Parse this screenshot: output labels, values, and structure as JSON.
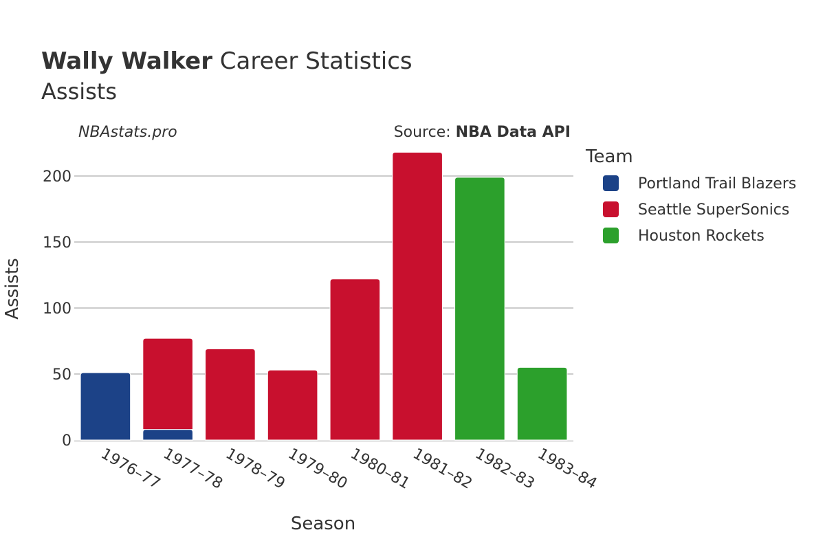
{
  "header": {
    "player": "Wally Walker",
    "title_rest": "Career Statistics",
    "subtitle": "Assists"
  },
  "watermark": "NBAstats.pro",
  "source": {
    "prefix": "Source: ",
    "name": "NBA Data API"
  },
  "legend": {
    "title": "Team"
  },
  "chart_data": {
    "type": "bar",
    "stacked": true,
    "categories": [
      "1976–77",
      "1977–78",
      "1978–79",
      "1979–80",
      "1980–81",
      "1981–82",
      "1982–83",
      "1983–84"
    ],
    "series": [
      {
        "name": "Portland Trail Blazers",
        "color": "#1c4287",
        "values": [
          51,
          8,
          0,
          0,
          0,
          0,
          0,
          0
        ]
      },
      {
        "name": "Seattle SuperSonics",
        "color": "#c8102e",
        "values": [
          0,
          69,
          69,
          53,
          122,
          218,
          0,
          0
        ]
      },
      {
        "name": "Houston Rockets",
        "color": "#2ca02c",
        "values": [
          0,
          0,
          0,
          0,
          0,
          0,
          199,
          55
        ]
      }
    ],
    "xlabel": "Season",
    "ylabel": "Assists",
    "ylim": [
      0,
      225
    ],
    "yticks": [
      0,
      50,
      100,
      150,
      200
    ],
    "grid": true,
    "legend_position": "right"
  }
}
